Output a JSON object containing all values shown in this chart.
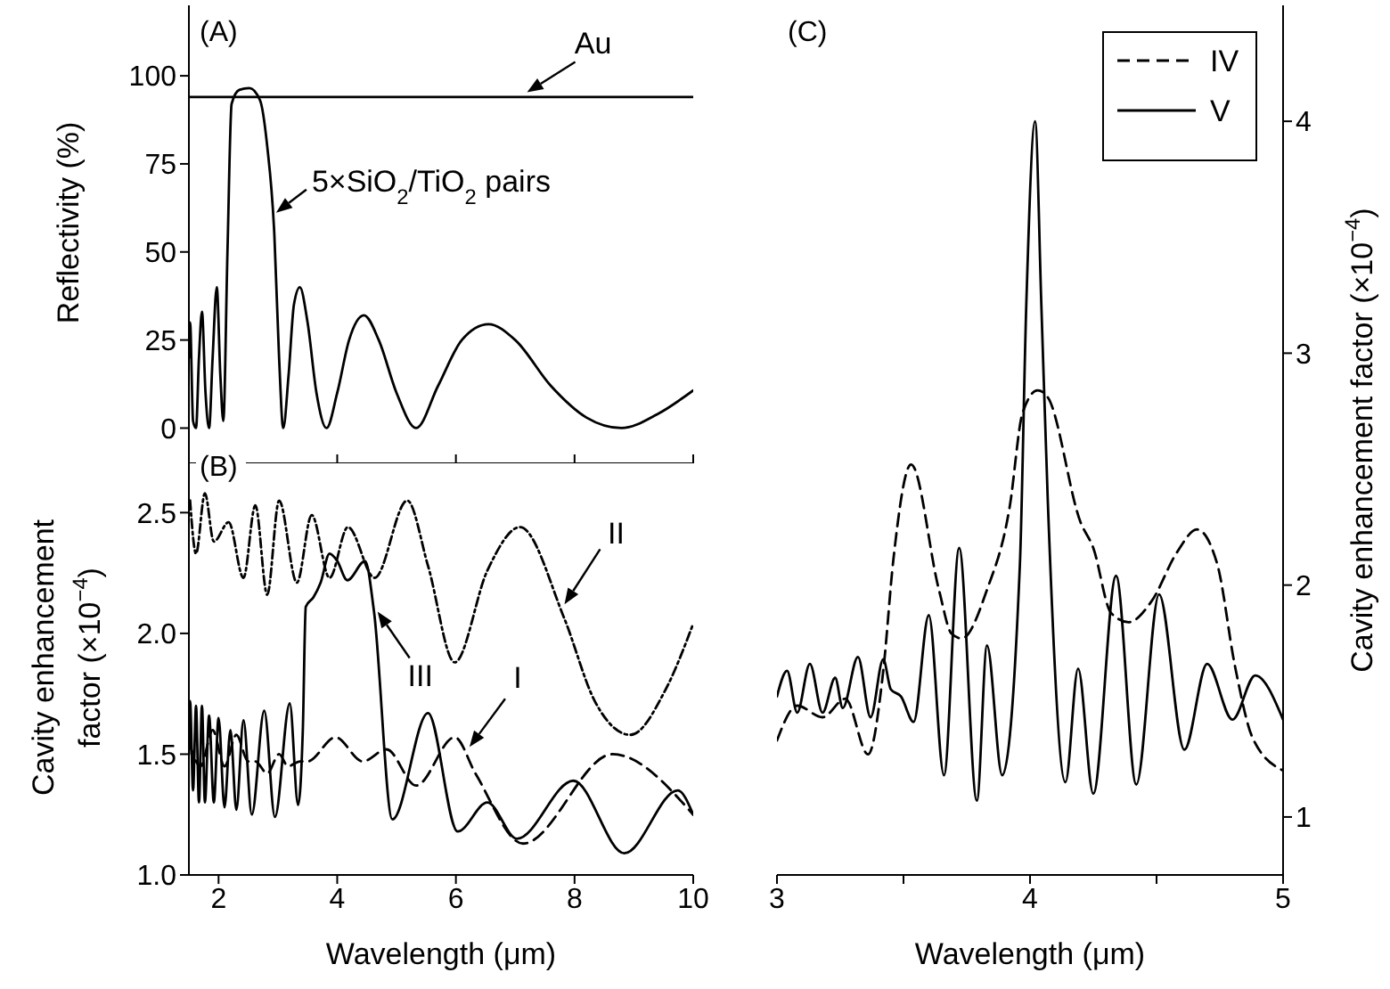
{
  "chart_data": [
    {
      "type": "line",
      "ylabel": "Reflectivity (%)",
      "xlim": [
        1.5,
        10
      ],
      "xticks": [
        2,
        4,
        6,
        8,
        10
      ],
      "ylim": [
        -10,
        120
      ],
      "yticks": [
        0,
        25,
        50,
        75,
        100
      ],
      "tick_labels": "y",
      "annotations": [
        "(A)",
        {
          "text": "Au",
          "x": 7.2,
          "y": 94
        },
        {
          "text": "5×SiO$_{2}$/TiO$_{2}$ pairs",
          "x": 2.97,
          "y": 58
        }
      ],
      "series": [
        {
          "color": "#000000",
          "line_style": "solid",
          "x": [
            1.5,
            10
          ],
          "values": [
            94,
            94
          ]
        },
        {
          "color": "#000000",
          "line_style": "solid",
          "x": [
            1.5,
            1.52,
            1.57,
            1.62,
            1.67,
            1.72,
            1.78,
            1.84,
            1.9,
            1.97,
            2.03,
            2.08,
            2.15,
            2.22,
            2.35,
            2.52,
            2.7,
            2.82,
            2.94,
            3.02,
            3.09,
            3.18,
            3.27,
            3.37,
            3.5,
            3.65,
            3.82,
            4.0,
            4.2,
            4.45,
            4.7,
            5.0,
            5.33,
            5.7,
            6.1,
            6.55,
            7.0,
            7.6,
            8.2,
            8.79,
            9.4,
            10
          ],
          "values": [
            20,
            30,
            2,
            0,
            20,
            33,
            10,
            0,
            20,
            40,
            15,
            2,
            50,
            92,
            96,
            96.5,
            93,
            80,
            55,
            20,
            0,
            15,
            35,
            40,
            30,
            10,
            0,
            10,
            25,
            32,
            25,
            10,
            0,
            12,
            25,
            29.5,
            25,
            12,
            3,
            0,
            4,
            10.7
          ]
        }
      ]
    },
    {
      "type": "line",
      "xlabel": "Wavelength (μm)",
      "ylabel": "Cavity enhancement factor (×10$^{−4}$)",
      "xlim": [
        1.5,
        10
      ],
      "xticks": [
        2,
        4,
        6,
        8,
        10
      ],
      "ylim": [
        1.0,
        2.8
      ],
      "yticks": [
        {
          "value": 1,
          "label": "1.0"
        },
        1.5,
        {
          "value": 2,
          "label": "2.0"
        },
        2.5
      ],
      "annotations": [
        "(B)",
        {
          "text": "III",
          "x": 4.68,
          "y": 2.09
        },
        {
          "text": "II",
          "x": 7.83,
          "y": 2.12
        },
        {
          "text": "I",
          "x": 6.23,
          "y": 1.53
        }
      ],
      "series": [
        {
          "color": "#000000",
          "line_style": "dashed",
          "x": [
            1.5,
            1.7,
            1.9,
            2.1,
            2.3,
            2.5,
            2.62,
            2.82,
            3.02,
            3.17,
            3.37,
            3.5,
            3.97,
            4.43,
            4.83,
            5.33,
            5.98,
            6.33,
            7.13,
            8.64,
            10
          ],
          "values": [
            1.55,
            1.45,
            1.6,
            1.45,
            1.58,
            1.47,
            1.47,
            1.42,
            1.5,
            1.45,
            1.47,
            1.47,
            1.57,
            1.47,
            1.52,
            1.37,
            1.57,
            1.42,
            1.13,
            1.5,
            1.25
          ]
        },
        {
          "color": "#000000",
          "line_style": "dotted",
          "x": [
            1.52,
            1.62,
            1.77,
            1.92,
            2.17,
            2.42,
            2.62,
            2.82,
            3.02,
            3.32,
            3.57,
            3.87,
            4.18,
            4.63,
            5.18,
            5.53,
            5.98,
            6.53,
            7.08,
            7.83,
            8.34,
            8.94,
            9.54,
            10
          ],
          "values": [
            2.55,
            2.33,
            2.58,
            2.38,
            2.46,
            2.23,
            2.53,
            2.16,
            2.55,
            2.21,
            2.49,
            2.23,
            2.44,
            2.23,
            2.55,
            2.28,
            1.88,
            2.26,
            2.44,
            2.06,
            1.72,
            1.58,
            1.77,
            2.04
          ]
        },
        {
          "color": "#000000",
          "line_style": "solid",
          "x": [
            1.5,
            1.52,
            1.57,
            1.62,
            1.67,
            1.72,
            1.77,
            1.84,
            1.92,
            2.0,
            2.1,
            2.2,
            2.3,
            2.42,
            2.56,
            2.77,
            2.95,
            3.2,
            3.34,
            3.42,
            3.47,
            3.6,
            3.72,
            3.87,
            4.0,
            4.17,
            4.47,
            4.62,
            4.93,
            5.53,
            6.03,
            6.53,
            7.03,
            7.98,
            8.84,
            9.74,
            10
          ],
          "values": [
            1.5,
            1.72,
            1.35,
            1.7,
            1.3,
            1.7,
            1.3,
            1.66,
            1.3,
            1.65,
            1.28,
            1.6,
            1.27,
            1.64,
            1.25,
            1.68,
            1.24,
            1.71,
            1.29,
            1.6,
            2.11,
            2.15,
            2.21,
            2.33,
            2.3,
            2.22,
            2.3,
            2.09,
            1.23,
            1.67,
            1.18,
            1.3,
            1.15,
            1.39,
            1.09,
            1.35,
            1.25
          ]
        }
      ]
    },
    {
      "type": "line",
      "xlabel": "Wavelength (μm)",
      "y2label": "Cavity enhancement factor (×10$^{−4}$)",
      "xlim": [
        3,
        5
      ],
      "xticks": [
        3,
        {
          "value": 3.5,
          "label": null
        },
        4,
        {
          "value": 4.5,
          "label": null
        },
        5
      ],
      "y2lim": [
        0.75,
        4.5
      ],
      "y2ticks": [
        1,
        2,
        3,
        4
      ],
      "legend": "top right",
      "annotations": [
        "(C)"
      ],
      "series": [
        {
          "name": "IV",
          "color": "#000000",
          "line_style": "dashed",
          "axis": "y2",
          "x": [
            3.0,
            3.08,
            3.18,
            3.27,
            3.36,
            3.42,
            3.46,
            3.53,
            3.64,
            3.69,
            3.73,
            3.83,
            3.92,
            3.97,
            4.03,
            4.07,
            4.2,
            4.25,
            4.32,
            4.39,
            4.48,
            4.58,
            4.66,
            4.74,
            4.81,
            4.88,
            5.0
          ],
          "values": [
            1.33,
            1.48,
            1.43,
            1.51,
            1.27,
            1.63,
            2.11,
            2.52,
            1.98,
            1.79,
            1.77,
            1.98,
            2.34,
            2.74,
            2.84,
            2.81,
            2.27,
            2.16,
            1.88,
            1.84,
            1.93,
            2.14,
            2.24,
            2.09,
            1.65,
            1.34,
            1.2
          ]
        },
        {
          "name": "V",
          "color": "#000000",
          "line_style": "solid",
          "axis": "y2",
          "x": [
            3.0,
            3.04,
            3.08,
            3.13,
            3.18,
            3.23,
            3.26,
            3.32,
            3.37,
            3.42,
            3.45,
            3.49,
            3.54,
            3.6,
            3.66,
            3.72,
            3.79,
            3.83,
            3.89,
            3.96,
            3.985,
            4.02,
            4.045,
            4.07,
            4.14,
            4.19,
            4.25,
            4.34,
            4.42,
            4.51,
            4.61,
            4.7,
            4.8,
            4.89,
            5.0
          ],
          "values": [
            1.52,
            1.63,
            1.45,
            1.66,
            1.45,
            1.6,
            1.47,
            1.69,
            1.43,
            1.68,
            1.55,
            1.52,
            1.41,
            1.87,
            1.18,
            2.16,
            1.07,
            1.74,
            1.18,
            2.09,
            3.2,
            4.0,
            3.2,
            2.37,
            1.15,
            1.64,
            1.1,
            2.04,
            1.14,
            1.96,
            1.29,
            1.66,
            1.42,
            1.61,
            1.42
          ]
        }
      ]
    }
  ]
}
